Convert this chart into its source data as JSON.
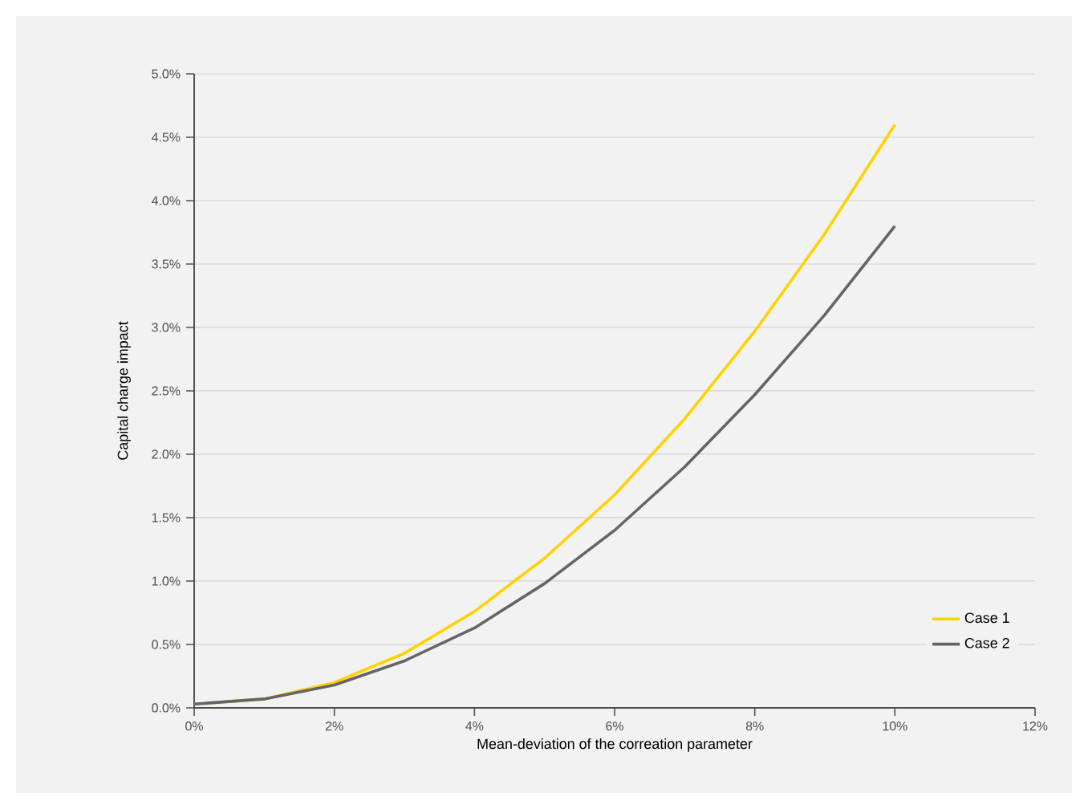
{
  "chart_data": {
    "type": "line",
    "xlabel": "Mean-deviation of the correation parameter",
    "ylabel": "Capital charge impact",
    "x": [
      0,
      1,
      2,
      3,
      4,
      5,
      6,
      7,
      8,
      9,
      10
    ],
    "series": [
      {
        "name": "Case 1",
        "color": "#ffd200",
        "values": [
          0.03,
          0.07,
          0.2,
          0.43,
          0.76,
          1.18,
          1.68,
          2.28,
          2.97,
          3.74,
          4.6
        ]
      },
      {
        "name": "Case 2",
        "color": "#646469",
        "values": [
          0.03,
          0.07,
          0.18,
          0.37,
          0.63,
          0.98,
          1.4,
          1.9,
          2.47,
          3.1,
          3.8
        ]
      }
    ],
    "xlim": [
      0,
      12
    ],
    "xticks": [
      {
        "value": 0,
        "label": "0%"
      },
      {
        "value": 2,
        "label": "2%"
      },
      {
        "value": 4,
        "label": "4%"
      },
      {
        "value": 6,
        "label": "6%"
      },
      {
        "value": 8,
        "label": "8%"
      },
      {
        "value": 10,
        "label": "10%"
      },
      {
        "value": 12,
        "label": "12%"
      }
    ],
    "ylim": [
      0,
      5
    ],
    "yticks": [
      {
        "value": 0,
        "label": "0.0%"
      },
      {
        "value": 0.5,
        "label": "0.5%"
      },
      {
        "value": 1,
        "label": "1.0%"
      },
      {
        "value": 1.5,
        "label": "1.5%"
      },
      {
        "value": 2,
        "label": "2.0%"
      },
      {
        "value": 2.5,
        "label": "2.5%"
      },
      {
        "value": 3,
        "label": "3.0%"
      },
      {
        "value": 3.5,
        "label": "3.5%"
      },
      {
        "value": 4,
        "label": "4.0%"
      },
      {
        "value": 4.5,
        "label": "4.5%"
      },
      {
        "value": 5,
        "label": "5.0%"
      }
    ],
    "grid": "y",
    "legend": "bottom right",
    "marker": "none",
    "line_style": "solid"
  }
}
